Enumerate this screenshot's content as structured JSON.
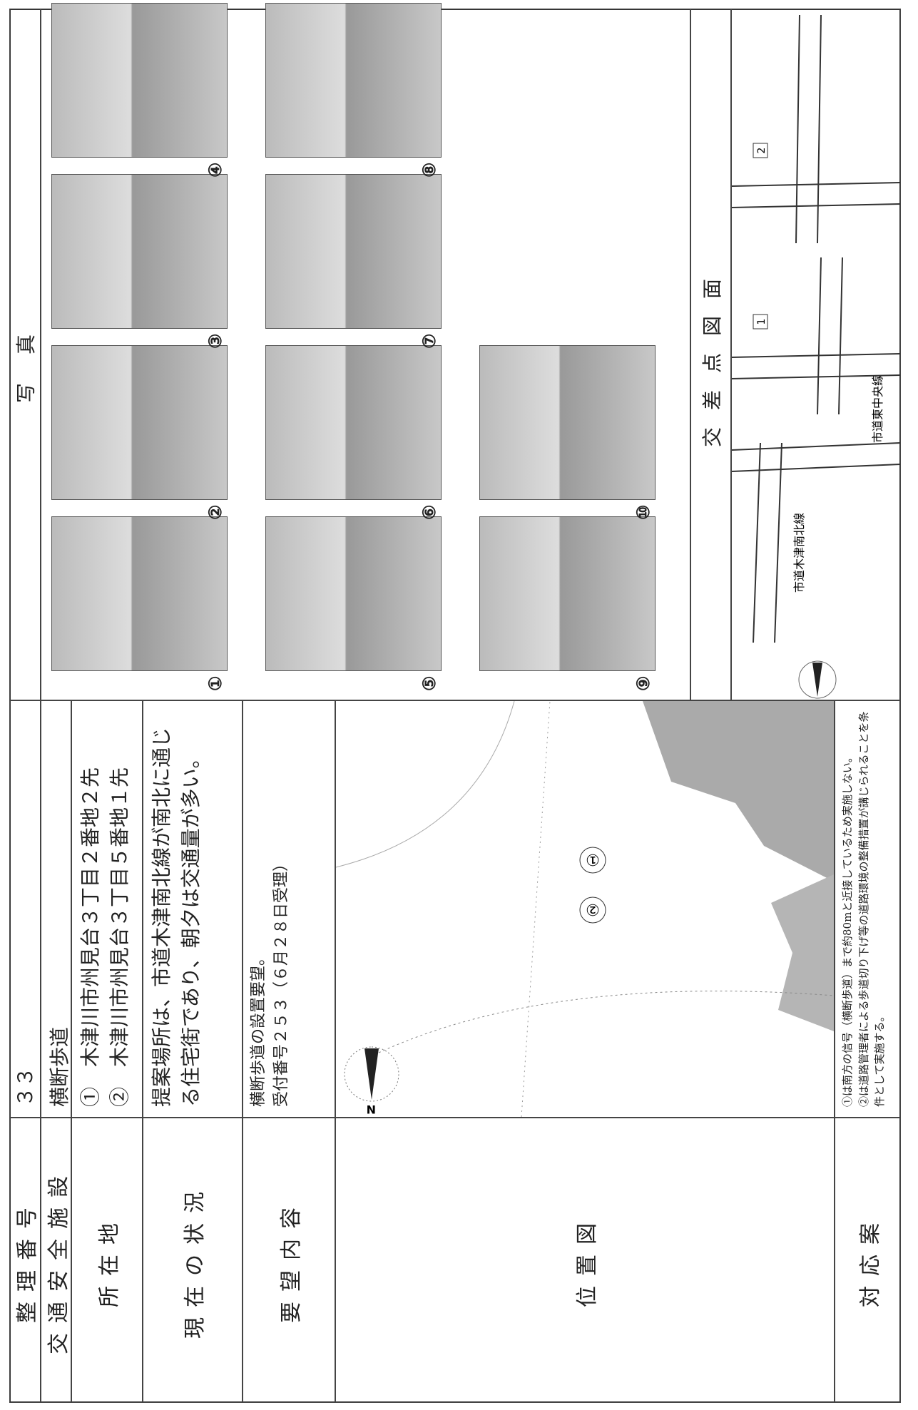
{
  "header": {
    "number_label": "整理番号",
    "number": "３３"
  },
  "rows": [
    {
      "label": "交通安全施設",
      "lines": [
        "横断歩道"
      ]
    },
    {
      "label": "所在地",
      "lines": [
        "①　木津川市州見台３丁目２番地２先",
        "②　木津川市州見台３丁目５番地１先"
      ]
    },
    {
      "label": "現在の状況",
      "lines": [
        "提案場所は、市道木津南北線が南北に通じる住宅街であり、朝夕は交通量が多い。"
      ]
    },
    {
      "label": "要望内容",
      "lines": [
        "横断歩道の設置要望。",
        "受付番号２５３（６月２８日受理）"
      ]
    }
  ],
  "location_map": {
    "label": "位置図",
    "markers": [
      "①",
      "②"
    ]
  },
  "response": {
    "label": "対応案",
    "lines": [
      "①は南方の信号（横断歩道）まで約80mと近接しているため実施しない。",
      "②は道路管理者による歩道切り下げ等の道路環境の整備措置が講じられることを条件として実施する。"
    ]
  },
  "photos": {
    "title": "写真",
    "labels": [
      "①",
      "②",
      "③",
      "④",
      "⑤",
      "⑥",
      "⑦",
      "⑧",
      "⑨",
      "⑩"
    ]
  },
  "diagram": {
    "title": "交差点図面",
    "road_ns": "市道木津南北線",
    "road_ew": "市道東中央線",
    "boxes": [
      "1",
      "2"
    ]
  }
}
